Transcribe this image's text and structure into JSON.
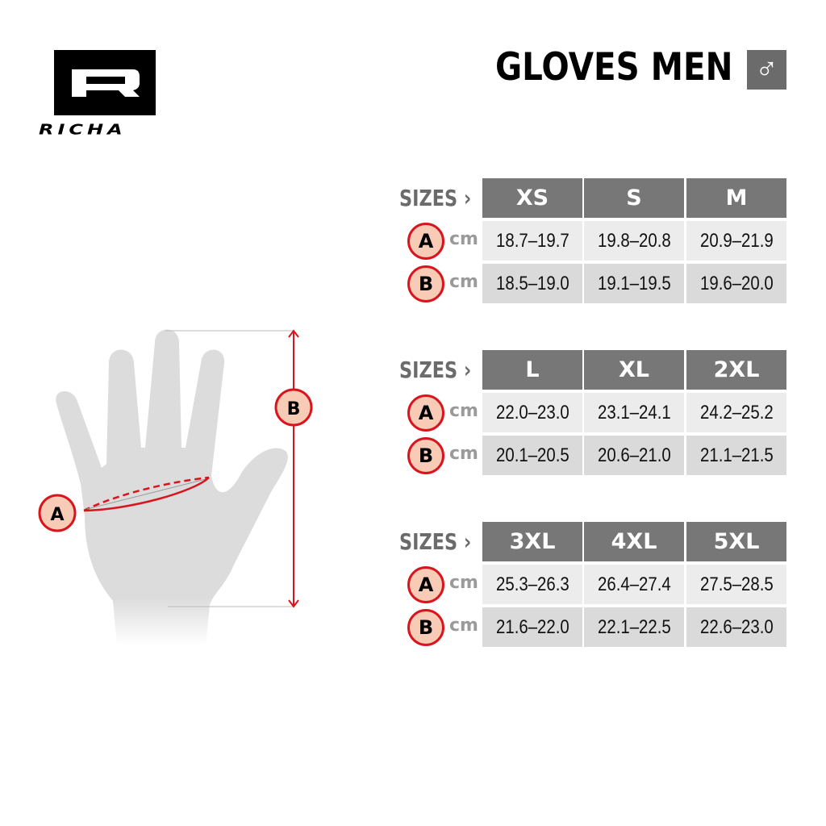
{
  "logo": {
    "brand": "RICHA"
  },
  "header": {
    "title": "GLOVES MEN",
    "gender_icon": "male-symbol",
    "gender_glyph": "♂"
  },
  "diagram": {
    "label_a": "A",
    "label_b": "B"
  },
  "colors": {
    "accent_red": "#d9141c",
    "badge_fill": "#f7cbb6",
    "header_gray": "#777777"
  },
  "table": {
    "sizes_label": "SIZES ›",
    "unit": "cm",
    "groups": [
      {
        "sizes": [
          "XS",
          "S",
          "M"
        ],
        "a": {
          "label": "A",
          "values": [
            "18.7–19.7",
            "19.8–20.8",
            "20.9–21.9"
          ]
        },
        "b": {
          "label": "B",
          "values": [
            "18.5–19.0",
            "19.1–19.5",
            "19.6–20.0"
          ]
        }
      },
      {
        "sizes": [
          "L",
          "XL",
          "2XL"
        ],
        "a": {
          "label": "A",
          "values": [
            "22.0–23.0",
            "23.1–24.1",
            "24.2–25.2"
          ]
        },
        "b": {
          "label": "B",
          "values": [
            "20.1–20.5",
            "20.6–21.0",
            "21.1–21.5"
          ]
        }
      },
      {
        "sizes": [
          "3XL",
          "4XL",
          "5XL"
        ],
        "a": {
          "label": "A",
          "values": [
            "25.3–26.3",
            "26.4–27.4",
            "27.5–28.5"
          ]
        },
        "b": {
          "label": "B",
          "values": [
            "21.6–22.0",
            "22.1–22.5",
            "22.6–23.0"
          ]
        }
      }
    ]
  }
}
